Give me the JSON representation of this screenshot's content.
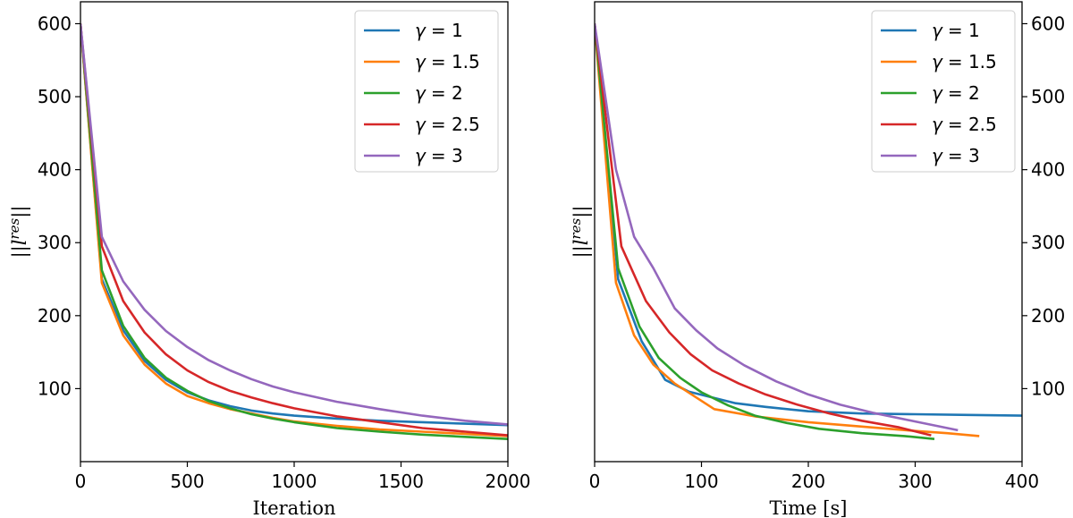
{
  "chart_data": [
    {
      "type": "line",
      "title": "",
      "xlabel": "Iteration",
      "ylabel": "||l^{res}||",
      "ylabel_parts": {
        "prefix": "||",
        "symbol": "l",
        "superscript": "res",
        "suffix": "||"
      },
      "xlim": [
        0,
        2000
      ],
      "ylim": [
        0,
        630
      ],
      "xticks": [
        "0",
        "500",
        "1000",
        "1500",
        "2000"
      ],
      "yticks": [
        "100",
        "200",
        "300",
        "400",
        "500",
        "600"
      ],
      "grid": false,
      "legend_position": "top-right",
      "series": [
        {
          "name": "γ = 1",
          "symbol": "γ",
          "value_label": "= 1",
          "color": "#1f77b4",
          "x": [
            0,
            100,
            200,
            300,
            400,
            500,
            600,
            700,
            800,
            900,
            1000,
            1200,
            1400,
            1600,
            1800,
            2000
          ],
          "y": [
            600,
            250,
            180,
            138,
            112,
            95,
            84,
            76,
            70,
            66,
            63,
            59,
            56,
            54,
            52,
            50
          ]
        },
        {
          "name": "γ = 1.5",
          "symbol": "γ",
          "value_label": "= 1.5",
          "color": "#ff7f0e",
          "x": [
            0,
            100,
            200,
            300,
            400,
            500,
            600,
            700,
            800,
            900,
            1000,
            1200,
            1400,
            1600,
            1800,
            2000
          ],
          "y": [
            600,
            245,
            173,
            133,
            107,
            90,
            80,
            72,
            66,
            60,
            55,
            49,
            44,
            41,
            38,
            35
          ]
        },
        {
          "name": "γ = 2",
          "symbol": "γ",
          "value_label": "= 2",
          "color": "#2ca02c",
          "x": [
            0,
            100,
            200,
            300,
            400,
            500,
            600,
            700,
            800,
            900,
            1000,
            1200,
            1400,
            1600,
            1800,
            2000
          ],
          "y": [
            600,
            262,
            186,
            142,
            115,
            97,
            83,
            73,
            65,
            59,
            54,
            46,
            41,
            37,
            34,
            31
          ]
        },
        {
          "name": "γ = 2.5",
          "symbol": "γ",
          "value_label": "= 2.5",
          "color": "#d62728",
          "x": [
            0,
            100,
            200,
            300,
            400,
            500,
            600,
            700,
            800,
            900,
            1000,
            1200,
            1400,
            1600,
            1800,
            2000
          ],
          "y": [
            600,
            295,
            220,
            177,
            147,
            125,
            109,
            97,
            88,
            80,
            73,
            62,
            54,
            46,
            41,
            36
          ]
        },
        {
          "name": "γ = 3",
          "symbol": "γ",
          "value_label": "= 3",
          "color": "#9467bd",
          "x": [
            0,
            100,
            200,
            300,
            400,
            500,
            600,
            700,
            800,
            900,
            1000,
            1200,
            1400,
            1600,
            1800,
            2000
          ],
          "y": [
            600,
            308,
            247,
            208,
            179,
            157,
            139,
            125,
            113,
            103,
            95,
            82,
            72,
            63,
            56,
            51
          ]
        }
      ]
    },
    {
      "type": "line",
      "title": "",
      "xlabel": "Time [s]",
      "ylabel": "||l^{res}||",
      "ylabel_parts": {
        "prefix": "||",
        "symbol": "l",
        "superscript": "res",
        "suffix": "||"
      },
      "xlim": [
        0,
        400
      ],
      "ylim": [
        0,
        630
      ],
      "xticks": [
        "0",
        "100",
        "200",
        "300",
        "400"
      ],
      "yticks": [
        "100",
        "200",
        "300",
        "400",
        "500",
        "600"
      ],
      "y_axis_side": "right",
      "grid": false,
      "legend_position": "top-right",
      "series": [
        {
          "name": "γ = 1",
          "symbol": "γ",
          "value_label": "= 1",
          "color": "#1f77b4",
          "x": [
            0,
            22,
            44,
            66,
            88,
            110,
            132,
            160,
            200,
            250,
            300,
            350,
            400
          ],
          "y": [
            600,
            250,
            165,
            112,
            96,
            88,
            80,
            75,
            69,
            66,
            65,
            64,
            63
          ]
        },
        {
          "name": "γ = 1.5",
          "symbol": "γ",
          "value_label": "= 1.5",
          "color": "#ff7f0e",
          "x": [
            0,
            20,
            37,
            55,
            75,
            95,
            112,
            150,
            200,
            250,
            300,
            330,
            360
          ],
          "y": [
            600,
            245,
            173,
            133,
            107,
            88,
            72,
            62,
            54,
            48,
            42,
            39,
            35
          ]
        },
        {
          "name": "γ = 2",
          "symbol": "γ",
          "value_label": "= 2",
          "color": "#2ca02c",
          "x": [
            0,
            22,
            42,
            60,
            80,
            100,
            125,
            150,
            180,
            210,
            250,
            290,
            318
          ],
          "y": [
            600,
            265,
            185,
            142,
            115,
            95,
            77,
            63,
            53,
            45,
            39,
            35,
            31
          ]
        },
        {
          "name": "γ = 2.5",
          "symbol": "γ",
          "value_label": "= 2.5",
          "color": "#d62728",
          "x": [
            0,
            25,
            48,
            70,
            90,
            110,
            135,
            160,
            190,
            220,
            250,
            285,
            315
          ],
          "y": [
            600,
            295,
            220,
            177,
            147,
            125,
            107,
            92,
            78,
            66,
            56,
            47,
            36
          ]
        },
        {
          "name": "γ = 3",
          "symbol": "γ",
          "value_label": "= 3",
          "color": "#9467bd",
          "x": [
            0,
            20,
            37,
            55,
            75,
            95,
            115,
            140,
            170,
            200,
            230,
            260,
            300,
            340
          ],
          "y": [
            600,
            400,
            308,
            265,
            210,
            180,
            155,
            132,
            110,
            92,
            78,
            67,
            55,
            43
          ]
        }
      ]
    }
  ]
}
